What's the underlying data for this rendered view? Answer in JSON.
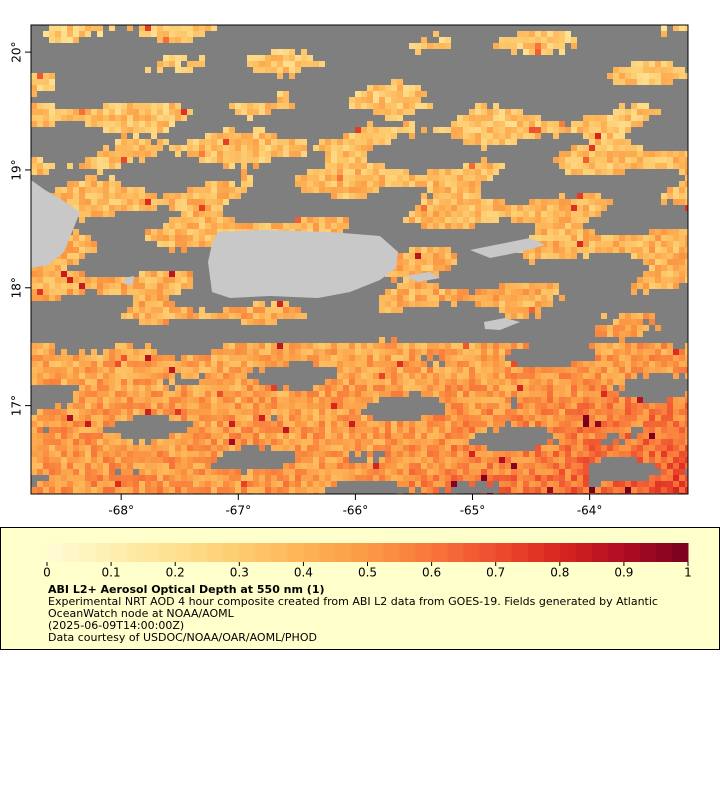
{
  "map": {
    "xlim": [
      -68.77,
      -63.16
    ],
    "ylim": [
      16.25,
      20.23
    ],
    "xticks": [
      {
        "value": -68,
        "label": "-68°"
      },
      {
        "value": -67,
        "label": "-67°"
      },
      {
        "value": -66,
        "label": "-66°"
      },
      {
        "value": -65,
        "label": "-65°"
      },
      {
        "value": -64,
        "label": "-64°"
      }
    ],
    "yticks": [
      {
        "value": 17,
        "label": "17°"
      },
      {
        "value": 18,
        "label": "18°"
      },
      {
        "value": 19,
        "label": "19°"
      },
      {
        "value": 20,
        "label": "20°"
      }
    ]
  },
  "colorbar": {
    "lim": [
      0,
      1
    ],
    "ticks": [
      0,
      0.1,
      0.2,
      0.3,
      0.4,
      0.5,
      0.6,
      0.7,
      0.8,
      0.9,
      1
    ],
    "colors": [
      "#fffbd6",
      "#feefb0",
      "#fee090",
      "#fdcc70",
      "#fdb456",
      "#fb9a45",
      "#f8763a",
      "#ee4d2e",
      "#d8251f",
      "#b00c24",
      "#78001f"
    ]
  },
  "legend": {
    "title": "ABI L2+ Aerosol Optical Depth at 550 nm (1)",
    "lines": [
      "Experimental NRT AOD 4 hour composite created from ABI L2 data from GOES-19. Fields generated by Atlantic",
      "OceanWatch node at NOAA/AOML",
      "(2025-06-09T14:00:00Z)",
      "Data courtesy of USDOC/NOAA/OAR/AOML/PHOD"
    ]
  }
}
